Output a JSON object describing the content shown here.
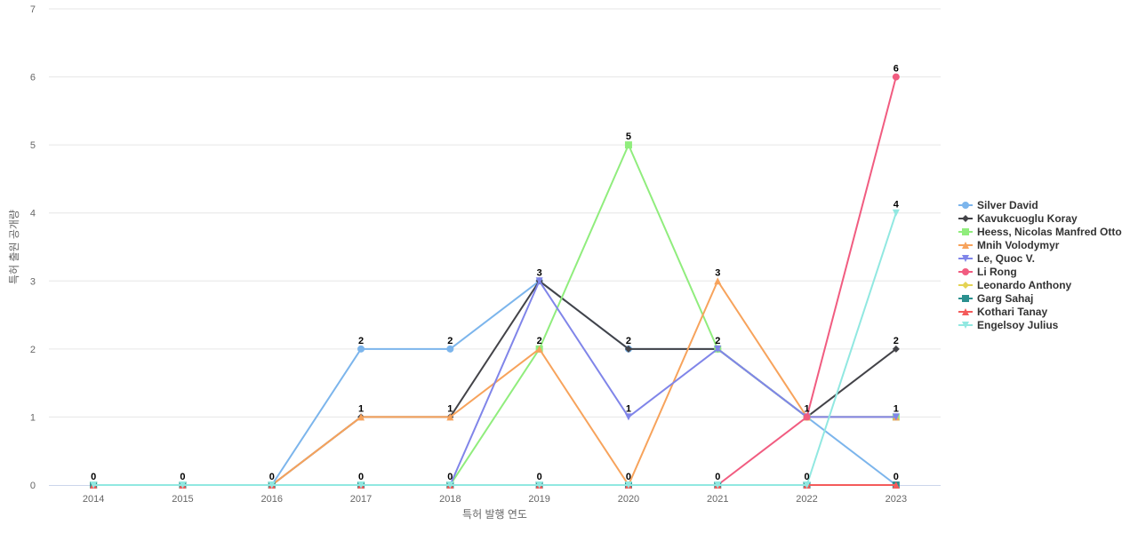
{
  "chart_data": {
    "type": "line",
    "xlabel": "특허 발행 연도",
    "ylabel": "특허 출원 공개량",
    "ylim": [
      0,
      7
    ],
    "yticks": [
      0,
      1,
      2,
      3,
      4,
      5,
      6,
      7
    ],
    "grid": true,
    "legend_position": "right",
    "categories": [
      "2014",
      "2015",
      "2016",
      "2017",
      "2018",
      "2019",
      "2020",
      "2021",
      "2022",
      "2023"
    ],
    "series": [
      {
        "name": "Silver David",
        "color": "#7cb5ec",
        "marker": "circle",
        "values": [
          0,
          0,
          0,
          2,
          2,
          3,
          2,
          2,
          1,
          0
        ]
      },
      {
        "name": "Kavukcuoglu Koray",
        "color": "#434348",
        "marker": "diamond",
        "values": [
          0,
          0,
          0,
          1,
          1,
          3,
          2,
          2,
          1,
          2
        ]
      },
      {
        "name": "Heess, Nicolas Manfred Otto",
        "color": "#90ed7d",
        "marker": "square",
        "values": [
          0,
          0,
          0,
          0,
          0,
          2,
          5,
          2,
          1,
          1
        ]
      },
      {
        "name": "Mnih Volodymyr",
        "color": "#f7a35c",
        "marker": "triangle",
        "values": [
          0,
          0,
          0,
          1,
          1,
          2,
          0,
          3,
          1,
          1
        ]
      },
      {
        "name": "Le, Quoc V.",
        "color": "#8085e9",
        "marker": "triangle-down",
        "values": [
          0,
          0,
          0,
          0,
          0,
          3,
          1,
          2,
          1,
          1
        ]
      },
      {
        "name": "Li Rong",
        "color": "#f15c80",
        "marker": "circle",
        "values": [
          0,
          0,
          0,
          0,
          0,
          0,
          0,
          0,
          1,
          6
        ]
      },
      {
        "name": "Leonardo Anthony",
        "color": "#e4d354",
        "marker": "diamond",
        "values": [
          0,
          0,
          0,
          0,
          0,
          0,
          0,
          0,
          0,
          0
        ]
      },
      {
        "name": "Garg Sahaj",
        "color": "#2b908f",
        "marker": "square",
        "values": [
          0,
          0,
          0,
          0,
          0,
          0,
          0,
          0,
          0,
          0
        ]
      },
      {
        "name": "Kothari Tanay",
        "color": "#f45b5b",
        "marker": "triangle",
        "values": [
          0,
          0,
          0,
          0,
          0,
          0,
          0,
          0,
          0,
          0
        ]
      },
      {
        "name": "Engelsoy Julius",
        "color": "#91e8e1",
        "marker": "triangle-down",
        "values": [
          0,
          0,
          0,
          0,
          0,
          0,
          0,
          0,
          0,
          4
        ]
      }
    ],
    "data_labels": [
      {
        "x": "2014",
        "y": 0,
        "text": "0"
      },
      {
        "x": "2015",
        "y": 0,
        "text": "0"
      },
      {
        "x": "2016",
        "y": 0,
        "text": "0"
      },
      {
        "x": "2017",
        "y": 2,
        "text": "2"
      },
      {
        "x": "2017",
        "y": 1,
        "text": "1"
      },
      {
        "x": "2017",
        "y": 0,
        "text": "0"
      },
      {
        "x": "2018",
        "y": 2,
        "text": "2"
      },
      {
        "x": "2018",
        "y": 1,
        "text": "1"
      },
      {
        "x": "2018",
        "y": 0,
        "text": "0"
      },
      {
        "x": "2019",
        "y": 3,
        "text": "3"
      },
      {
        "x": "2019",
        "y": 2,
        "text": "2"
      },
      {
        "x": "2019",
        "y": 0,
        "text": "0"
      },
      {
        "x": "2020",
        "y": 5,
        "text": "5"
      },
      {
        "x": "2020",
        "y": 2,
        "text": "2"
      },
      {
        "x": "2020",
        "y": 1,
        "text": "1"
      },
      {
        "x": "2020",
        "y": 0,
        "text": "0"
      },
      {
        "x": "2021",
        "y": 3,
        "text": "3"
      },
      {
        "x": "2021",
        "y": 2,
        "text": "2"
      },
      {
        "x": "2021",
        "y": 0,
        "text": "0"
      },
      {
        "x": "2022",
        "y": 1,
        "text": "1"
      },
      {
        "x": "2022",
        "y": 0,
        "text": "0"
      },
      {
        "x": "2023",
        "y": 6,
        "text": "6"
      },
      {
        "x": "2023",
        "y": 4,
        "text": "4"
      },
      {
        "x": "2023",
        "y": 2,
        "text": "2"
      },
      {
        "x": "2023",
        "y": 1,
        "text": "1"
      },
      {
        "x": "2023",
        "y": 0,
        "text": "0"
      }
    ]
  }
}
